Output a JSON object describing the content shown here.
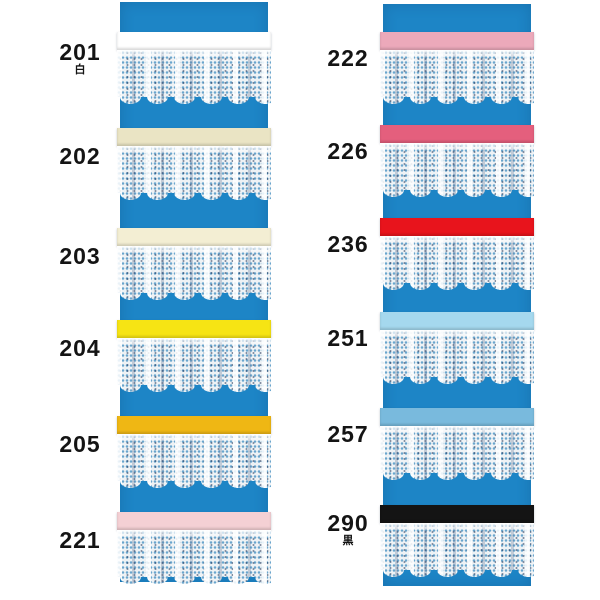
{
  "page": {
    "description": "Lace trim sample catalog: two blue sample boards, each holding six numbered ribbon-and-lace swatches",
    "background_color": "#ffffff",
    "board_color": "#1d85c6",
    "lace_color": "#eef2f5",
    "label_color": "#141414"
  },
  "columns": [
    {
      "name": "left",
      "samples": [
        {
          "code": "201",
          "note": "白",
          "ribbon_color": "#ffffff"
        },
        {
          "code": "202",
          "note": "",
          "ribbon_color": "#eae4c4"
        },
        {
          "code": "203",
          "note": "",
          "ribbon_color": "#f3eed3"
        },
        {
          "code": "204",
          "note": "",
          "ribbon_color": "#f6e414"
        },
        {
          "code": "205",
          "note": "",
          "ribbon_color": "#efb714"
        },
        {
          "code": "221",
          "note": "",
          "ribbon_color": "#f4d0d4"
        }
      ]
    },
    {
      "name": "right",
      "samples": [
        {
          "code": "222",
          "note": "",
          "ribbon_color": "#eca9ba"
        },
        {
          "code": "226",
          "note": "",
          "ribbon_color": "#e45f7d"
        },
        {
          "code": "236",
          "note": "",
          "ribbon_color": "#e8141c"
        },
        {
          "code": "251",
          "note": "",
          "ribbon_color": "#a5d8ee"
        },
        {
          "code": "257",
          "note": "",
          "ribbon_color": "#79badd"
        },
        {
          "code": "290",
          "note": "黒",
          "ribbon_color": "#141414"
        }
      ]
    }
  ]
}
